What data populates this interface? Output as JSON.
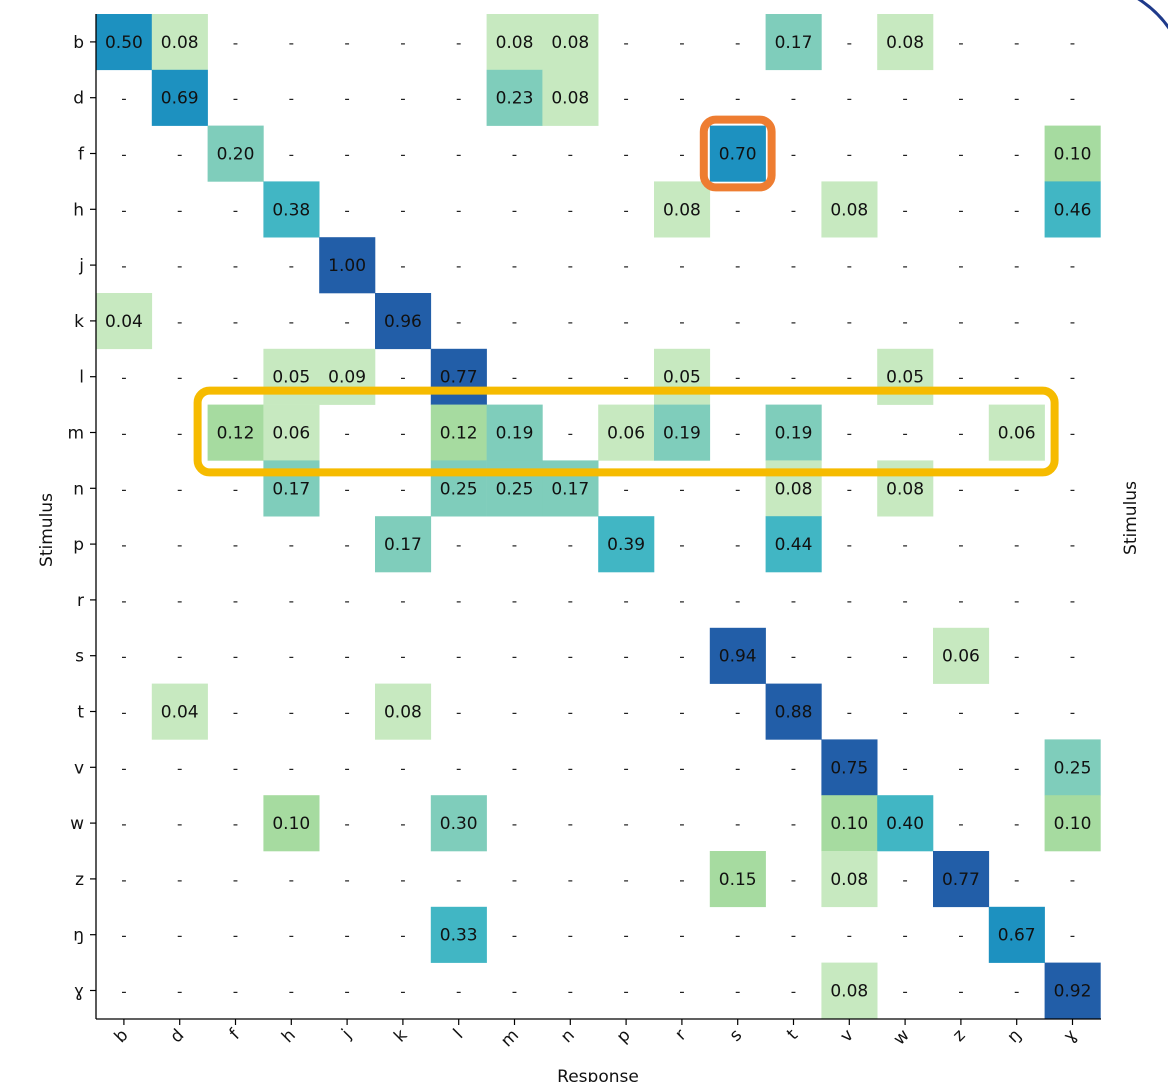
{
  "chart_data": {
    "type": "heatmap",
    "xlabel": "Response",
    "ylabel": "Stimulus",
    "ylabel_right": "Stimulus",
    "x_categories": [
      "b",
      "d",
      "f",
      "h",
      "j",
      "k",
      "l",
      "m",
      "n",
      "p",
      "r",
      "s",
      "t",
      "v",
      "w",
      "z",
      "ŋ",
      "ɣ"
    ],
    "y_categories": [
      "b",
      "d",
      "f",
      "h",
      "j",
      "k",
      "l",
      "m",
      "n",
      "p",
      "r",
      "s",
      "t",
      "v",
      "w",
      "z",
      "ŋ",
      "ɣ"
    ],
    "missing_marker": "-",
    "value_range": [
      0,
      1
    ],
    "colormap": [
      "#c7e9c0",
      "#a6dba0",
      "#7fcdbb",
      "#41b6c4",
      "#1d91c0",
      "#225ea8"
    ],
    "values": [
      [
        0.5,
        0.08,
        null,
        null,
        null,
        null,
        null,
        0.08,
        0.08,
        null,
        null,
        null,
        0.17,
        null,
        0.08,
        null,
        null,
        null
      ],
      [
        null,
        0.69,
        null,
        null,
        null,
        null,
        null,
        0.23,
        0.08,
        null,
        null,
        null,
        null,
        null,
        null,
        null,
        null,
        null
      ],
      [
        null,
        null,
        0.2,
        null,
        null,
        null,
        null,
        null,
        null,
        null,
        null,
        0.7,
        null,
        null,
        null,
        null,
        null,
        0.1
      ],
      [
        null,
        null,
        null,
        0.38,
        null,
        null,
        null,
        null,
        null,
        null,
        0.08,
        null,
        null,
        0.08,
        null,
        null,
        null,
        0.46
      ],
      [
        null,
        null,
        null,
        null,
        1.0,
        null,
        null,
        null,
        null,
        null,
        null,
        null,
        null,
        null,
        null,
        null,
        null,
        null
      ],
      [
        0.04,
        null,
        null,
        null,
        null,
        0.96,
        null,
        null,
        null,
        null,
        null,
        null,
        null,
        null,
        null,
        null,
        null,
        null
      ],
      [
        null,
        null,
        null,
        0.05,
        0.09,
        null,
        0.77,
        null,
        null,
        null,
        0.05,
        null,
        null,
        null,
        0.05,
        null,
        null,
        null
      ],
      [
        null,
        null,
        0.12,
        0.06,
        null,
        null,
        0.12,
        0.19,
        null,
        0.06,
        0.19,
        null,
        0.19,
        null,
        null,
        null,
        0.06,
        null
      ],
      [
        null,
        null,
        null,
        0.17,
        null,
        null,
        0.25,
        0.25,
        0.17,
        null,
        null,
        null,
        0.08,
        null,
        0.08,
        null,
        null,
        null
      ],
      [
        null,
        null,
        null,
        null,
        null,
        0.17,
        null,
        null,
        null,
        0.39,
        null,
        null,
        0.44,
        null,
        null,
        null,
        null,
        null
      ],
      [
        null,
        null,
        null,
        null,
        null,
        null,
        null,
        null,
        null,
        null,
        null,
        null,
        null,
        null,
        null,
        null,
        null,
        null
      ],
      [
        null,
        null,
        null,
        null,
        null,
        null,
        null,
        null,
        null,
        null,
        null,
        0.94,
        null,
        null,
        null,
        0.06,
        null,
        null
      ],
      [
        null,
        0.04,
        null,
        null,
        null,
        0.08,
        null,
        null,
        null,
        null,
        null,
        null,
        0.88,
        null,
        null,
        null,
        null,
        null
      ],
      [
        null,
        null,
        null,
        null,
        null,
        null,
        null,
        null,
        null,
        null,
        null,
        null,
        null,
        0.75,
        null,
        null,
        null,
        0.25
      ],
      [
        null,
        null,
        null,
        0.1,
        null,
        null,
        0.3,
        null,
        null,
        null,
        null,
        null,
        null,
        0.1,
        0.4,
        null,
        null,
        0.1
      ],
      [
        null,
        null,
        null,
        null,
        null,
        null,
        null,
        null,
        null,
        null,
        null,
        0.15,
        null,
        0.08,
        null,
        0.77,
        null,
        null
      ],
      [
        null,
        null,
        null,
        null,
        null,
        null,
        0.33,
        null,
        null,
        null,
        null,
        null,
        null,
        null,
        null,
        null,
        0.67,
        null
      ],
      [
        null,
        null,
        null,
        null,
        null,
        null,
        null,
        null,
        null,
        null,
        null,
        null,
        null,
        0.08,
        null,
        null,
        null,
        0.92
      ]
    ],
    "highlights": [
      {
        "type": "cell",
        "row": "f",
        "col": "s",
        "color": "#ee7d31"
      },
      {
        "type": "row-range",
        "row": "m",
        "from_col": "f",
        "to_col": "ŋ",
        "color": "#f6bb00"
      }
    ]
  }
}
